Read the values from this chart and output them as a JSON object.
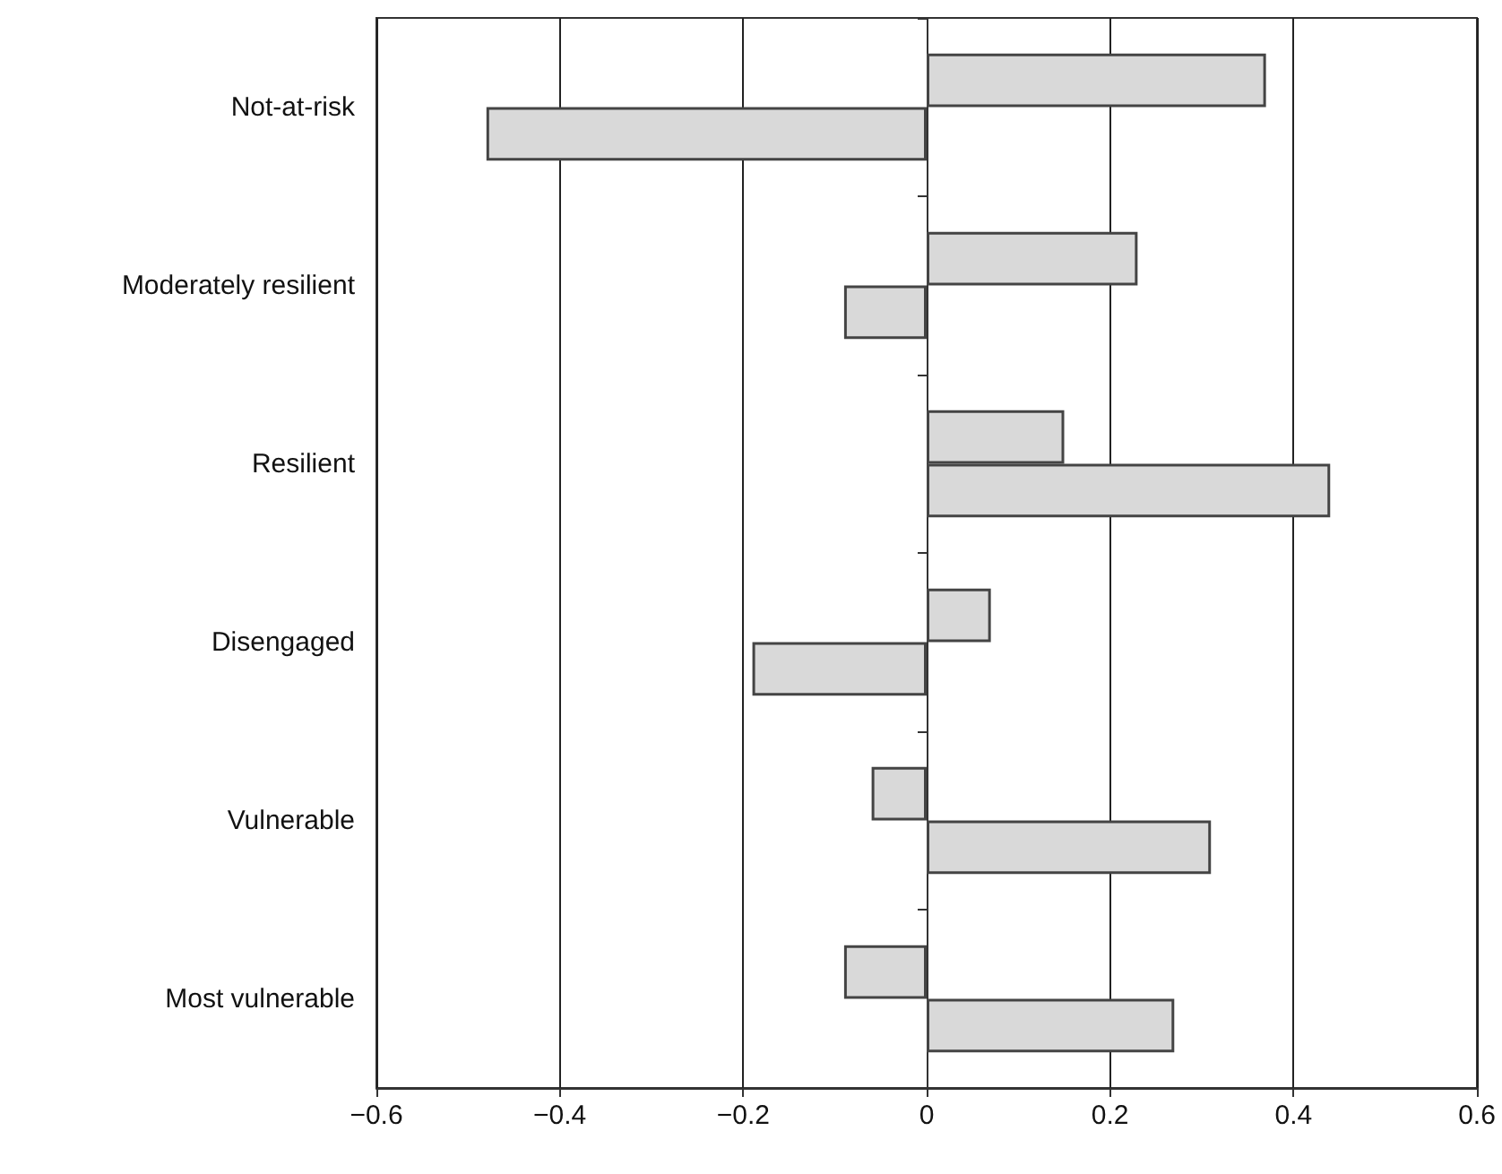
{
  "chart_data": {
    "type": "bar",
    "orientation": "horizontal",
    "categories": [
      "Not-at-risk",
      "Moderately resilient",
      "Resilient",
      "Disengaged",
      "Vulnerable",
      "Most vulnerable"
    ],
    "series": [
      {
        "color": "#d9d9d9",
        "values": [
          0.37,
          0.23,
          0.15,
          0.07,
          -0.06,
          -0.09
        ]
      },
      {
        "color": "#d9d9d9",
        "values": [
          -0.48,
          -0.09,
          0.44,
          -0.19,
          0.31,
          0.27
        ]
      }
    ],
    "xlim": [
      -0.6,
      0.6
    ],
    "xticks": [
      {
        "value": -0.6,
        "label": "−0.6"
      },
      {
        "value": -0.4,
        "label": "−0.4"
      },
      {
        "value": -0.2,
        "label": "−0.2"
      },
      0,
      0.2,
      0.4,
      0.6
    ],
    "grid": "x"
  }
}
